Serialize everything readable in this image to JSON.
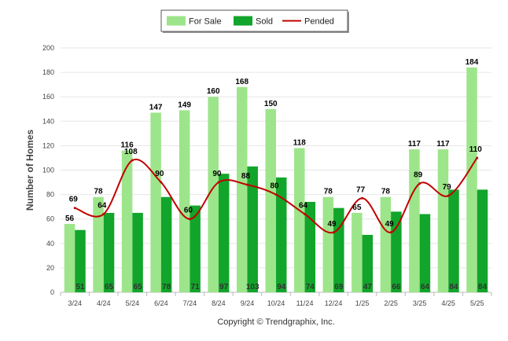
{
  "chart_data": {
    "type": "bar",
    "ylabel": "Number of Homes",
    "ylim": [
      0,
      200
    ],
    "yticks": [
      0,
      20,
      40,
      60,
      80,
      100,
      120,
      140,
      160,
      180,
      200
    ],
    "grid": true,
    "legend_position": "top-center",
    "categories": [
      "3/24",
      "4/24",
      "5/24",
      "6/24",
      "7/24",
      "8/24",
      "9/24",
      "10/24",
      "11/24",
      "12/24",
      "1/25",
      "2/25",
      "3/25",
      "4/25",
      "5/25"
    ],
    "series": [
      {
        "name": "For Sale",
        "kind": "bar",
        "color": "#9de58a",
        "values": [
          56,
          78,
          116,
          147,
          149,
          160,
          168,
          150,
          118,
          78,
          65,
          78,
          117,
          117,
          184
        ]
      },
      {
        "name": "Sold",
        "kind": "bar",
        "color": "#12a52b",
        "values": [
          51,
          65,
          65,
          78,
          71,
          97,
          103,
          94,
          74,
          69,
          47,
          66,
          64,
          84,
          84
        ]
      },
      {
        "name": "Pended",
        "kind": "line",
        "color": "#c00000",
        "values": [
          69,
          64,
          108,
          90,
          60,
          90,
          88,
          80,
          64,
          49,
          77,
          49,
          89,
          79,
          110
        ]
      }
    ],
    "footer": "Copyright © Trendgraphix, Inc."
  }
}
